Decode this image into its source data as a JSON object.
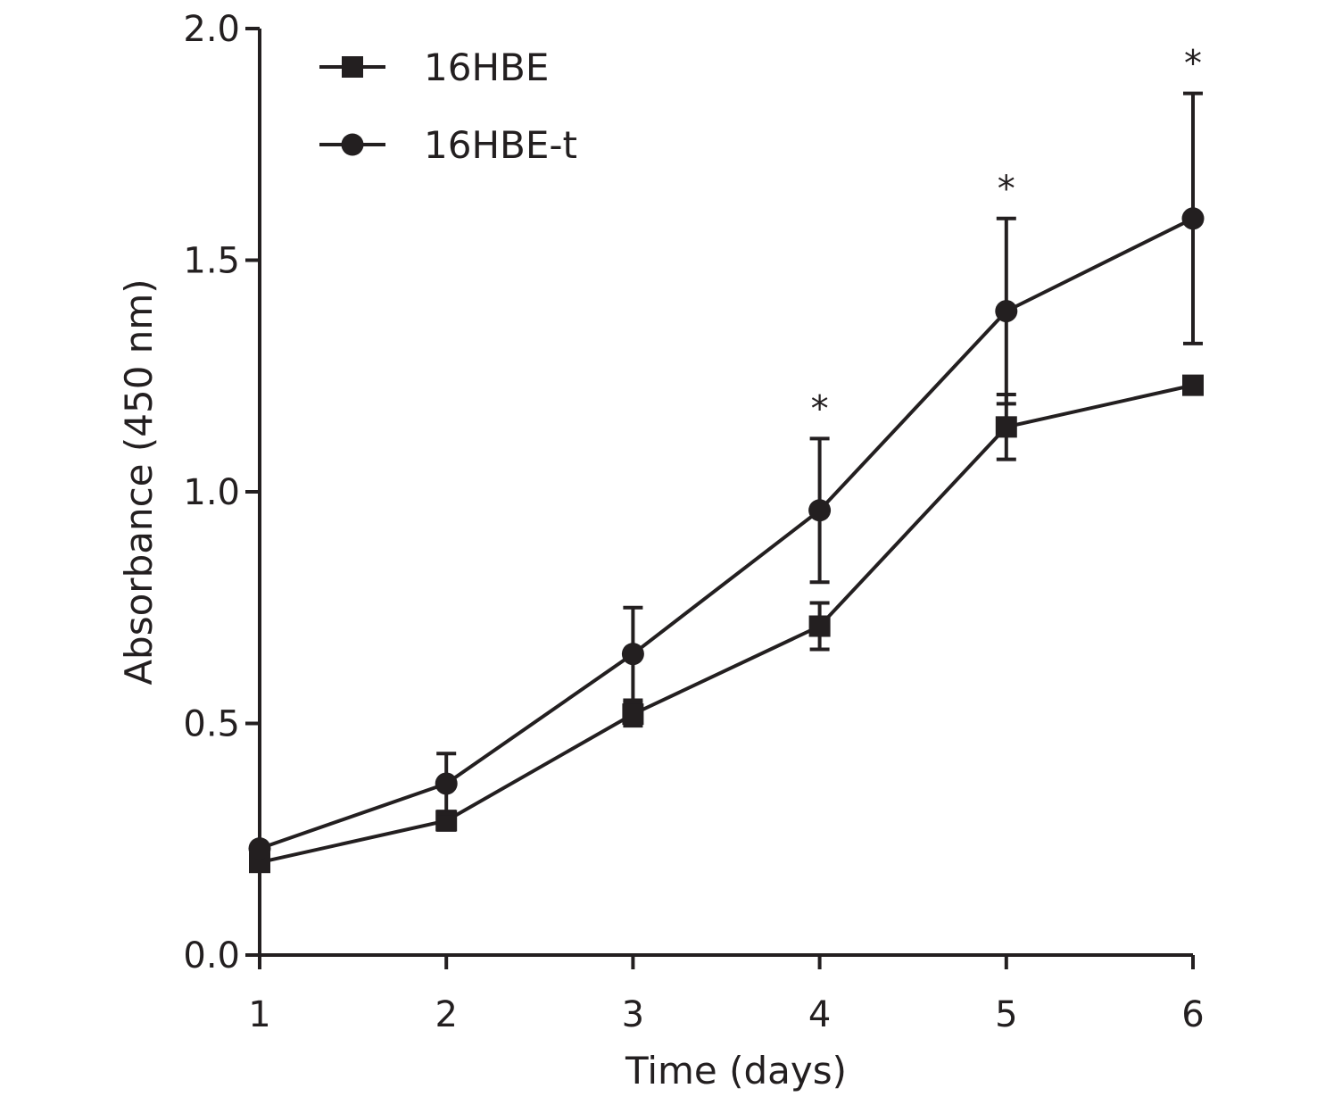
{
  "chart_data": {
    "type": "line",
    "title": "",
    "xlabel": "Time (days)",
    "ylabel": "Absorbance (450 nm)",
    "x": [
      1,
      2,
      3,
      4,
      5,
      6
    ],
    "xticks": [
      "1",
      "2",
      "3",
      "4",
      "5",
      "6"
    ],
    "yticks": [
      "0.0",
      "0.5",
      "1.0",
      "1.5",
      "2.0"
    ],
    "ylim": [
      0,
      2.0
    ],
    "xlim": [
      1,
      6
    ],
    "grid": false,
    "legend_position": "top-left",
    "series": [
      {
        "name": "16HBE",
        "marker": "square",
        "values": [
          0.2,
          0.29,
          0.52,
          0.71,
          1.14,
          1.23
        ],
        "error": [
          0.0,
          0.02,
          0.025,
          0.05,
          0.07,
          0.0
        ]
      },
      {
        "name": "16HBE-t",
        "marker": "circle",
        "values": [
          0.23,
          0.37,
          0.65,
          0.96,
          1.39,
          1.59
        ],
        "error": [
          0.0,
          0.065,
          0.1,
          0.155,
          0.2,
          0.27
        ]
      }
    ],
    "annotations": [
      {
        "x": 4,
        "text": "*"
      },
      {
        "x": 5,
        "text": "*"
      },
      {
        "x": 6,
        "text": "*"
      }
    ],
    "color": "#231f20"
  }
}
